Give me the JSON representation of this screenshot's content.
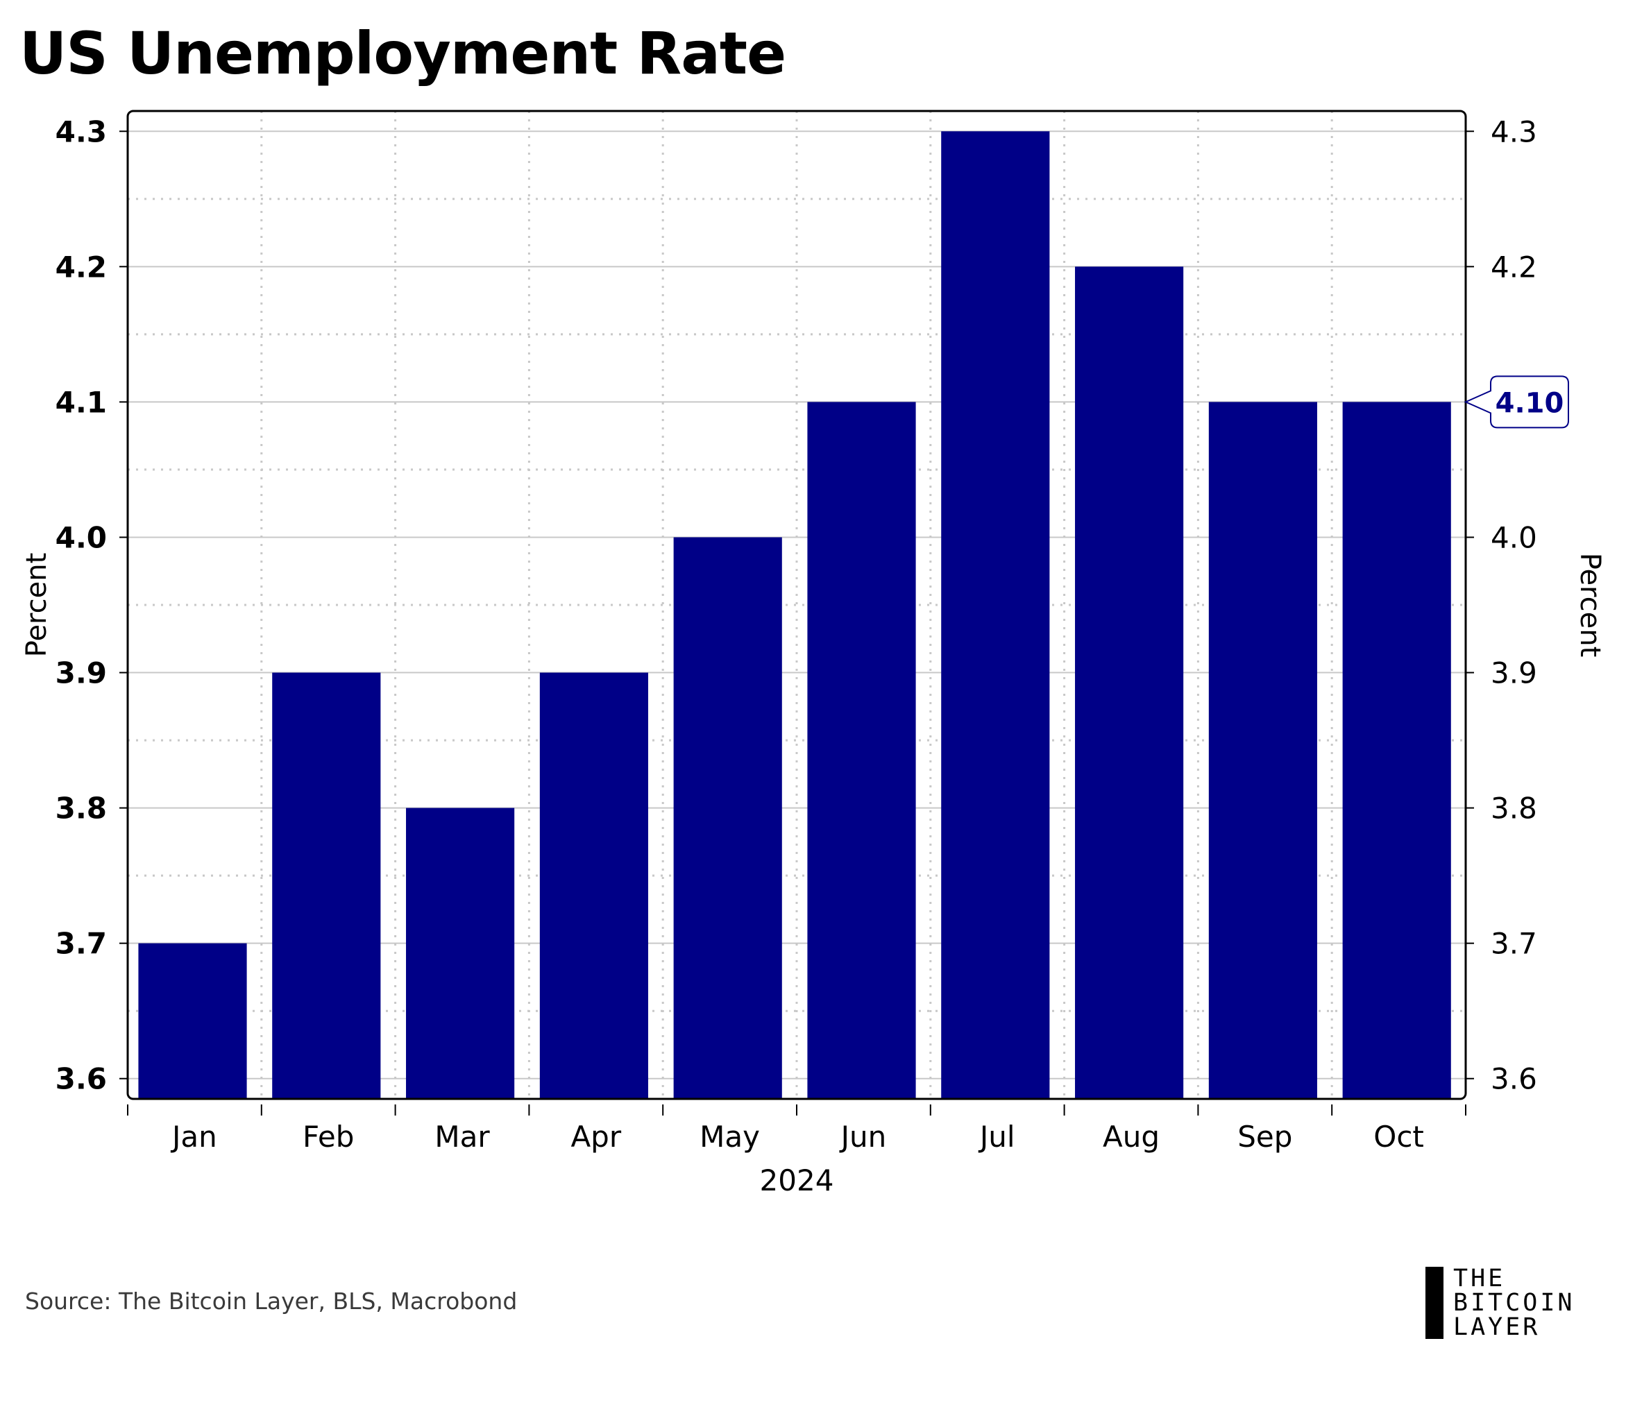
{
  "title": "US Unemployment Rate",
  "source": "Source: The Bitcoin Layer, BLS, Macrobond",
  "logo": {
    "line1": "THE",
    "line2": "BITCOIN",
    "line3": "LAYER"
  },
  "colors": {
    "bar": "#000087",
    "grid": "#c8c8c8",
    "axis": "#000000",
    "callout_text": "#000087"
  },
  "chart_data": {
    "type": "bar",
    "categories": [
      "Jan",
      "Feb",
      "Mar",
      "Apr",
      "May",
      "Jun",
      "Jul",
      "Aug",
      "Sep",
      "Oct"
    ],
    "values": [
      3.7,
      3.9,
      3.8,
      3.9,
      4.0,
      4.1,
      4.3,
      4.2,
      4.1,
      4.1
    ],
    "title": "US Unemployment Rate",
    "xlabel": "2024",
    "ylabel_left": "Percent",
    "ylabel_right": "Percent",
    "yticks": [
      "3.6",
      "3.7",
      "3.8",
      "3.9",
      "4.0",
      "4.1",
      "4.2",
      "4.3"
    ],
    "ylim": [
      3.585,
      4.315
    ],
    "grid": true,
    "last_value_label": "4.10"
  }
}
